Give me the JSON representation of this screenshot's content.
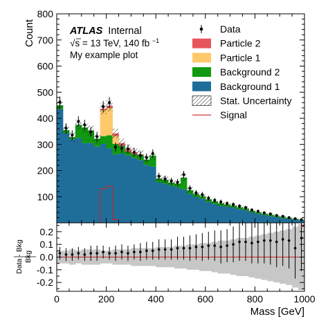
{
  "chart_data": {
    "type": "stacked-histogram",
    "upper": {
      "ylabel": "Count",
      "ylim": [
        0,
        800
      ],
      "yticks": [
        "0",
        "100",
        "200",
        "300",
        "400",
        "500",
        "600",
        "700",
        "800"
      ],
      "xlim": [
        0,
        1000
      ],
      "bin_edges": [
        0,
        25,
        50,
        75,
        100,
        125,
        150,
        175,
        200,
        225,
        250,
        275,
        300,
        325,
        350,
        375,
        400,
        425,
        450,
        475,
        500,
        525,
        550,
        575,
        600,
        625,
        650,
        675,
        700,
        725,
        750,
        775,
        800,
        825,
        850,
        875,
        900,
        925,
        950,
        975,
        1000
      ],
      "series": [
        {
          "name": "Background 1",
          "color": "#1f6e9a",
          "values": [
            435,
            343,
            320,
            325,
            305,
            305,
            292,
            302,
            285,
            262,
            265,
            258,
            248,
            240,
            222,
            215,
            155,
            150,
            142,
            135,
            128,
            110,
            98,
            92,
            80,
            72,
            65,
            62,
            58,
            52,
            48,
            40,
            35,
            30,
            26,
            22,
            18,
            15,
            12,
            10
          ]
        },
        {
          "name": "Background 2",
          "color": "#119911",
          "values": [
            15,
            12,
            8,
            50,
            60,
            48,
            30,
            30,
            50,
            40,
            30,
            15,
            15,
            20,
            20,
            42,
            15,
            15,
            12,
            15,
            45,
            15,
            12,
            10,
            10,
            10,
            10,
            8,
            8,
            8,
            7,
            6,
            6,
            5,
            5,
            4,
            4,
            3,
            3,
            2
          ]
        },
        {
          "name": "Particle 1",
          "color": "#fdc96b",
          "values": [
            0,
            0,
            0,
            0,
            0,
            0,
            0,
            100,
            105,
            30,
            0,
            0,
            0,
            0,
            0,
            0,
            0,
            0,
            0,
            0,
            0,
            0,
            0,
            0,
            0,
            0,
            0,
            0,
            0,
            0,
            0,
            0,
            0,
            0,
            0,
            0,
            0,
            0,
            0,
            0
          ]
        },
        {
          "name": "Particle 2",
          "color": "#e7545c",
          "values": [
            0,
            0,
            0,
            0,
            0,
            0,
            0,
            5,
            8,
            10,
            10,
            10,
            8,
            2,
            0,
            0,
            0,
            0,
            0,
            0,
            0,
            0,
            0,
            0,
            0,
            0,
            0,
            0,
            0,
            0,
            0,
            0,
            0,
            0,
            0,
            0,
            0,
            0,
            0,
            0
          ]
        }
      ],
      "uncertainty_label": "Stat. Uncertainty",
      "signal": {
        "name": "Signal",
        "color": "#cc2222",
        "values": [
          0,
          0,
          0,
          0,
          0,
          0,
          0,
          130,
          140,
          12,
          0,
          0,
          0,
          0,
          0,
          0,
          0,
          0,
          0,
          0,
          0,
          0,
          0,
          0,
          0,
          0,
          0,
          0,
          0,
          0,
          0,
          0,
          0,
          0,
          0,
          0,
          0,
          0,
          0,
          0
        ]
      },
      "data": {
        "name": "Data",
        "values": [
          462,
          362,
          336,
          388,
          375,
          348,
          330,
          445,
          460,
          290,
          285,
          283,
          270,
          258,
          250,
          265,
          178,
          168,
          160,
          155,
          185,
          132,
          115,
          108,
          94,
          86,
          80,
          74,
          70,
          64,
          58,
          49,
          44,
          38,
          34,
          28,
          25,
          20,
          16,
          12
        ]
      }
    },
    "lower": {
      "ylabel": "Data - Bkg",
      "ylabel_denominator": "Bkg",
      "ylim": [
        -0.27,
        0.27
      ],
      "yticks": [
        "-0.2",
        "-0.1",
        "0.0",
        "0.1",
        "0.2"
      ],
      "ratio": [
        0.03,
        0.02,
        0.02,
        0.03,
        0.02,
        0.03,
        0.03,
        0.04,
        0.03,
        0.03,
        0.04,
        0.03,
        0.04,
        0.04,
        0.05,
        0.05,
        0.06,
        0.06,
        0.06,
        0.07,
        0.07,
        0.07,
        0.08,
        0.08,
        0.09,
        0.09,
        0.08,
        0.09,
        0.1,
        0.12,
        0.12,
        0.11,
        0.12,
        0.13,
        0.13,
        0.12,
        0.14,
        0.13,
        0.07,
        0.15
      ],
      "band": [
        0.05,
        0.05,
        0.06,
        0.05,
        0.06,
        0.06,
        0.06,
        0.05,
        0.05,
        0.06,
        0.06,
        0.06,
        0.07,
        0.07,
        0.07,
        0.07,
        0.08,
        0.08,
        0.08,
        0.09,
        0.09,
        0.1,
        0.1,
        0.11,
        0.11,
        0.12,
        0.13,
        0.13,
        0.14,
        0.15,
        0.15,
        0.16,
        0.17,
        0.18,
        0.19,
        0.2,
        0.21,
        0.22,
        0.24,
        0.26
      ],
      "err": [
        0.05,
        0.05,
        0.05,
        0.05,
        0.05,
        0.06,
        0.06,
        0.05,
        0.05,
        0.06,
        0.06,
        0.06,
        0.06,
        0.07,
        0.07,
        0.07,
        0.08,
        0.08,
        0.08,
        0.09,
        0.09,
        0.1,
        0.1,
        0.11,
        0.11,
        0.12,
        0.13,
        0.13,
        0.14,
        0.15,
        0.15,
        0.16,
        0.17,
        0.18,
        0.19,
        0.2,
        0.21,
        0.22,
        0.24,
        0.26
      ],
      "overflow_marker_color": "#cc2222"
    },
    "xlabel": "Mass [GeV]",
    "xticks": [
      "0",
      "200",
      "400",
      "600",
      "800",
      "1000"
    ],
    "legend_placement": "top-right",
    "legend": [
      "Data",
      "Particle 2",
      "Particle 1",
      "Background 2",
      "Background 1",
      "Stat. Uncertainty",
      "Signal"
    ],
    "annotations": {
      "experiment": "ATLAS",
      "status": "Internal",
      "energy_prefix": "√s = 13 TeV, 140 fb",
      "energy_sup": "−1",
      "caption": "My example plot"
    }
  }
}
